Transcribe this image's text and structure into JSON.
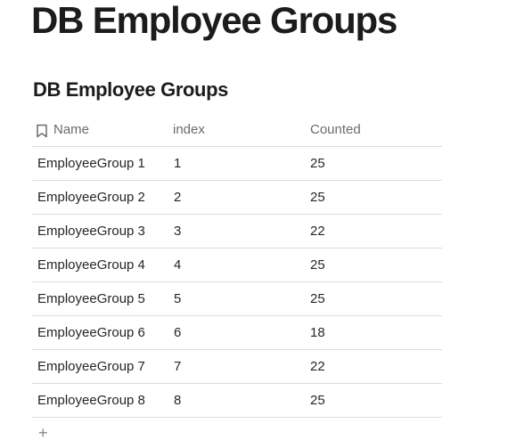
{
  "page": {
    "title": "DB Employee Groups"
  },
  "database": {
    "title": "DB Employee Groups",
    "columns": {
      "name": "Name",
      "index": "index",
      "counted": "Counted"
    },
    "rows": [
      {
        "name": "EmployeeGroup 1",
        "index": "1",
        "counted": "25"
      },
      {
        "name": "EmployeeGroup 2",
        "index": "2",
        "counted": "25"
      },
      {
        "name": "EmployeeGroup 3",
        "index": "3",
        "counted": "22"
      },
      {
        "name": "EmployeeGroup 4",
        "index": "4",
        "counted": "25"
      },
      {
        "name": "EmployeeGroup 5",
        "index": "5",
        "counted": "25"
      },
      {
        "name": "EmployeeGroup 6",
        "index": "6",
        "counted": "18"
      },
      {
        "name": "EmployeeGroup 7",
        "index": "7",
        "counted": "22"
      },
      {
        "name": "EmployeeGroup 8",
        "index": "8",
        "counted": "25"
      }
    ],
    "add_row_label": "+"
  },
  "icons": {
    "name_column_icon": "bookmark-icon",
    "add_row_icon": "plus-icon"
  }
}
